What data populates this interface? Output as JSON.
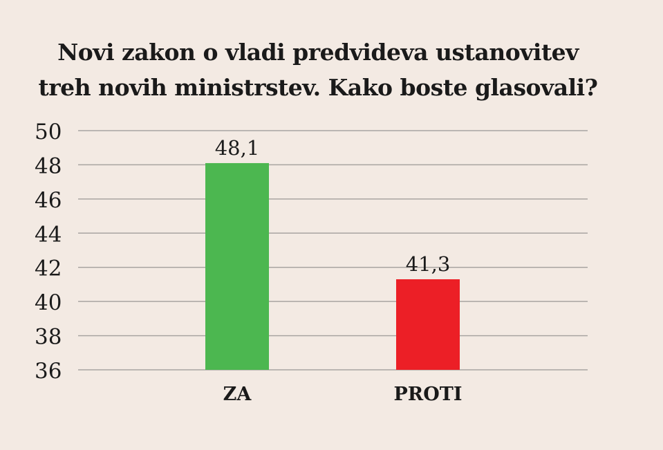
{
  "chart_data": {
    "type": "bar",
    "title": [
      "Novi zakon o vladi predvideva ustanovitev",
      "treh novih ministrstev. Kako boste glasovali?"
    ],
    "categories": [
      "ZA",
      "PROTI"
    ],
    "values": [
      48.1,
      41.3
    ],
    "value_labels": [
      "48,1",
      "41,3"
    ],
    "colors": [
      "#4cb750",
      "#ec1f26"
    ],
    "ylim": [
      36,
      50
    ],
    "yticks": [
      50,
      48,
      46,
      44,
      42,
      40,
      38,
      36
    ],
    "xlabel": "",
    "ylabel": "",
    "grid": true
  }
}
